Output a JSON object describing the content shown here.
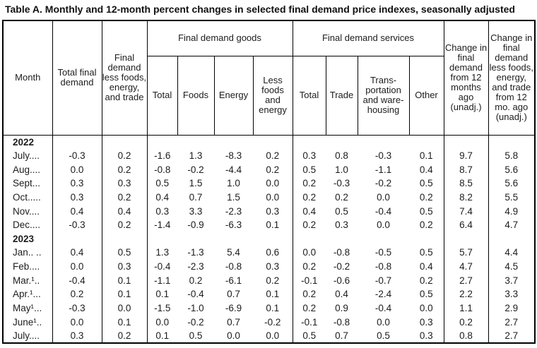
{
  "title": "Table A. Monthly and 12-month percent changes in selected final demand price indexes, seasonally adjusted",
  "header": {
    "month": "Month",
    "total_final_demand": "Total final demand",
    "fd_less_fet": "Final demand less foods, energy, and trade",
    "goods_group": "Final demand goods",
    "services_group": "Final demand services",
    "goods_cols": [
      "Total",
      "Foods",
      "Energy",
      "Less foods and energy"
    ],
    "services_cols": [
      "Total",
      "Trade",
      "Trans- portation and ware- housing",
      "Other"
    ],
    "change_12mo": "Change in final demand from 12 months ago (unadj.)",
    "change_less_12mo": "Change in final demand less foods, energy, and trade from 12 mo. ago (unadj.)"
  },
  "rows": [
    {
      "year": "2022"
    },
    {
      "month": "July....",
      "values": [
        "-0.3",
        "0.2",
        "-1.6",
        "1.3",
        "-8.3",
        "0.2",
        "0.3",
        "0.8",
        "-0.3",
        "0.1",
        "9.7",
        "5.8"
      ]
    },
    {
      "month": "Aug....",
      "values": [
        "0.0",
        "0.2",
        "-0.8",
        "-0.2",
        "-4.4",
        "0.2",
        "0.5",
        "1.0",
        "-1.1",
        "0.4",
        "8.7",
        "5.6"
      ]
    },
    {
      "month": "Sept...",
      "values": [
        "0.3",
        "0.3",
        "0.5",
        "1.5",
        "1.0",
        "0.0",
        "0.2",
        "-0.3",
        "-0.2",
        "0.5",
        "8.5",
        "5.6"
      ]
    },
    {
      "month": "Oct.....",
      "values": [
        "0.3",
        "0.2",
        "0.4",
        "0.7",
        "1.5",
        "0.0",
        "0.2",
        "0.2",
        "0.0",
        "0.2",
        "8.2",
        "5.5"
      ]
    },
    {
      "month": "Nov....",
      "values": [
        "0.4",
        "0.4",
        "0.3",
        "3.3",
        "-2.3",
        "0.3",
        "0.4",
        "0.5",
        "-0.4",
        "0.5",
        "7.4",
        "4.9"
      ]
    },
    {
      "month": "Dec....",
      "values": [
        "-0.3",
        "0.2",
        "-1.4",
        "-0.9",
        "-6.3",
        "0.1",
        "0.2",
        "0.3",
        "0.0",
        "0.2",
        "6.4",
        "4.7"
      ]
    },
    {
      "year": "2023"
    },
    {
      "month": "Jan.. ..",
      "values": [
        "0.4",
        "0.5",
        "1.3",
        "-1.3",
        "5.4",
        "0.6",
        "0.0",
        "-0.8",
        "-0.5",
        "0.5",
        "5.7",
        "4.4"
      ]
    },
    {
      "month": "Feb....",
      "values": [
        "0.0",
        "0.3",
        "-0.4",
        "-2.3",
        "-0.8",
        "0.3",
        "0.2",
        "-0.2",
        "-0.8",
        "0.4",
        "4.7",
        "4.5"
      ]
    },
    {
      "month": "Mar.¹..",
      "values": [
        "-0.4",
        "0.1",
        "-1.1",
        "0.2",
        "-6.1",
        "0.2",
        "-0.1",
        "-0.6",
        "-0.7",
        "0.2",
        "2.7",
        "3.7"
      ]
    },
    {
      "month": "Apr.¹...",
      "values": [
        "0.2",
        "0.1",
        "0.1",
        "-0.4",
        "0.7",
        "0.1",
        "0.2",
        "0.4",
        "-2.4",
        "0.5",
        "2.2",
        "3.3"
      ]
    },
    {
      "month": "May¹...",
      "values": [
        "-0.3",
        "0.0",
        "-1.5",
        "-1.0",
        "-6.9",
        "0.1",
        "0.2",
        "0.9",
        "-0.4",
        "0.0",
        "1.1",
        "2.9"
      ]
    },
    {
      "month": "June¹..",
      "values": [
        "0.0",
        "0.1",
        "0.0",
        "-0.2",
        "0.7",
        "-0.2",
        "-0.1",
        "-0.8",
        "0.0",
        "0.3",
        "0.2",
        "2.7"
      ]
    },
    {
      "month": "July....",
      "values": [
        "0.3",
        "0.2",
        "0.1",
        "0.5",
        "0.0",
        "0.0",
        "0.5",
        "0.7",
        "0.5",
        "0.3",
        "0.8",
        "2.7"
      ]
    }
  ]
}
